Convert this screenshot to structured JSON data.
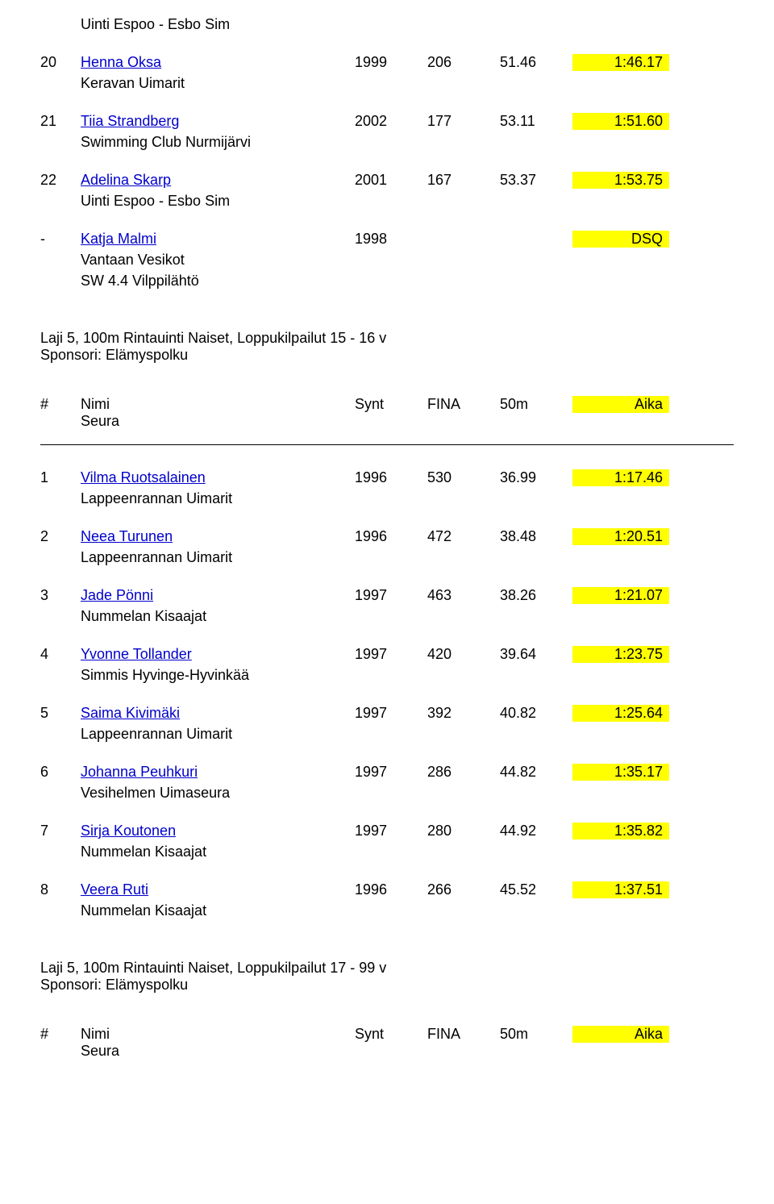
{
  "colors": {
    "link": "#0000cc",
    "highlight": "#ffff00",
    "text": "#000000",
    "background": "#ffffff"
  },
  "font": {
    "family": "Arial",
    "size_pt": 14
  },
  "top_continuation_club": "Uinti Espoo - Esbo Sim",
  "rows_a": [
    {
      "rank": "20",
      "name": "Henna Oksa",
      "club": "Keravan Uimarit",
      "synt": "1999",
      "fina": "206",
      "split": "51.46",
      "aika": "1:46.17"
    },
    {
      "rank": "21",
      "name": "Tiia Strandberg",
      "club": "Swimming Club Nurmijärvi",
      "synt": "2002",
      "fina": "177",
      "split": "53.11",
      "aika": "1:51.60"
    },
    {
      "rank": "22",
      "name": "Adelina Skarp",
      "club": "Uinti Espoo - Esbo Sim",
      "synt": "2001",
      "fina": "167",
      "split": "53.37",
      "aika": "1:53.75"
    },
    {
      "rank": "-",
      "name": "Katja Malmi",
      "club": "Vantaan Vesikot",
      "extra": "SW 4.4 Vilppilähtö",
      "synt": "1998",
      "fina": "",
      "split": "",
      "aika": "DSQ"
    }
  ],
  "event_b": {
    "line1": "Laji 5, 100m Rintauinti Naiset, Loppukilpailut 15 - 16 v",
    "line2": "Sponsori: Elämyspolku"
  },
  "header": {
    "hash": "#",
    "nimi": "Nimi",
    "seura": "Seura",
    "synt": "Synt",
    "fina": "FINA",
    "split": "50m",
    "aika": "Aika"
  },
  "rows_b": [
    {
      "rank": "1",
      "name": "Vilma Ruotsalainen",
      "club": "Lappeenrannan Uimarit",
      "synt": "1996",
      "fina": "530",
      "split": "36.99",
      "aika": "1:17.46"
    },
    {
      "rank": "2",
      "name": "Neea Turunen",
      "club": "Lappeenrannan Uimarit",
      "synt": "1996",
      "fina": "472",
      "split": "38.48",
      "aika": "1:20.51"
    },
    {
      "rank": "3",
      "name": "Jade Pönni",
      "club": "Nummelan Kisaajat",
      "synt": "1997",
      "fina": "463",
      "split": "38.26",
      "aika": "1:21.07"
    },
    {
      "rank": "4",
      "name": "Yvonne Tollander",
      "club": "Simmis Hyvinge-Hyvinkää",
      "synt": "1997",
      "fina": "420",
      "split": "39.64",
      "aika": "1:23.75"
    },
    {
      "rank": "5",
      "name": "Saima Kivimäki",
      "club": "Lappeenrannan Uimarit",
      "synt": "1997",
      "fina": "392",
      "split": "40.82",
      "aika": "1:25.64"
    },
    {
      "rank": "6",
      "name": "Johanna Peuhkuri",
      "club": "Vesihelmen Uimaseura",
      "synt": "1997",
      "fina": "286",
      "split": "44.82",
      "aika": "1:35.17"
    },
    {
      "rank": "7",
      "name": "Sirja Koutonen",
      "club": "Nummelan Kisaajat",
      "synt": "1997",
      "fina": "280",
      "split": "44.92",
      "aika": "1:35.82"
    },
    {
      "rank": "8",
      "name": "Veera Ruti",
      "club": "Nummelan Kisaajat",
      "synt": "1996",
      "fina": "266",
      "split": "45.52",
      "aika": "1:37.51"
    }
  ],
  "event_c": {
    "line1": "Laji 5, 100m Rintauinti Naiset, Loppukilpailut 17 - 99 v",
    "line2": "Sponsori: Elämyspolku"
  }
}
